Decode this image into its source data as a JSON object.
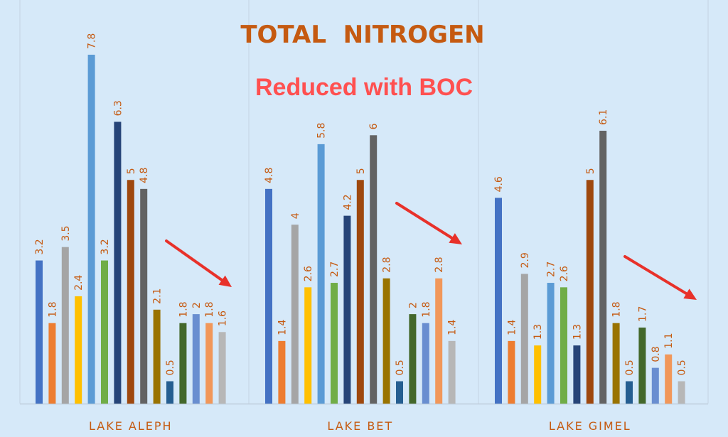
{
  "chart_data": {
    "type": "bar",
    "title": "TOTAL  NITROGEN",
    "subtitle": "Reduced with BOC",
    "categories": [
      "LAKE ALEPH",
      "LAKE BET",
      "LAKE GIMEL"
    ],
    "groups": [
      {
        "category": "LAKE ALEPH",
        "values": [
          3.2,
          1.8,
          3.5,
          2.4,
          7.8,
          3.2,
          6.3,
          5,
          4.8,
          2.1,
          0.5,
          1.8,
          2,
          1.8,
          1.6
        ],
        "labels": [
          "3.2",
          "1.8",
          "3.5",
          "2.4",
          "7.8",
          "3.2",
          "6.3",
          "5",
          "4.8",
          "2.1",
          "0.5",
          "1.8",
          "2",
          "1.8",
          "1.6"
        ]
      },
      {
        "category": "LAKE BET",
        "values": [
          4.8,
          1.4,
          4,
          2.6,
          5.8,
          2.7,
          4.2,
          5,
          6,
          2.8,
          0.5,
          2,
          1.8,
          2.8,
          1.4
        ],
        "labels": [
          "4.8",
          "1.4",
          "4",
          "2.6",
          "5.8",
          "2.7",
          "4.2",
          "5",
          "6",
          "2.8",
          "0.5",
          "2",
          "1.8",
          "2.8",
          "1.4"
        ]
      },
      {
        "category": "LAKE GIMEL",
        "values": [
          4.6,
          1.4,
          2.9,
          1.3,
          2.7,
          2.6,
          1.3,
          5,
          6.1,
          1.8,
          0.5,
          1.7,
          0.8,
          1.1,
          0.5
        ],
        "labels": [
          "4.6",
          "1.4",
          "2.9",
          "1.3",
          "2.7",
          "2.6",
          "1.3",
          "5",
          "6.1",
          "1.8",
          "0.5",
          "1.7",
          "0.8",
          "1.1",
          "0.5"
        ]
      }
    ],
    "series_colors": [
      "#4472c4",
      "#ed7d31",
      "#a5a5a5",
      "#ffc000",
      "#5b9bd5",
      "#70ad47",
      "#264478",
      "#9e480e",
      "#636363",
      "#997300",
      "#255e91",
      "#43682b",
      "#698ed0",
      "#f1975a",
      "#b7b7b7"
    ],
    "ylim": [
      0,
      8.4
    ],
    "grid": false,
    "legend": "none",
    "title_color": "#c55a11",
    "subtitle_color": "#ff5050",
    "label_color": "#c55a11",
    "arrow_color": "#e8312a",
    "background_color": "#d6e9f9"
  }
}
